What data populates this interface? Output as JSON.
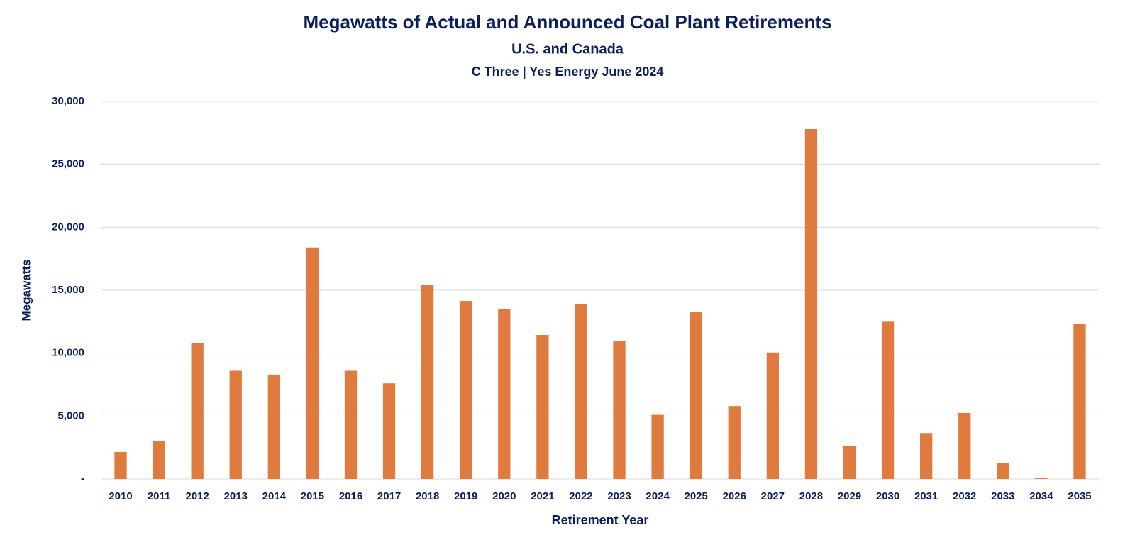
{
  "chart_data": {
    "type": "bar",
    "title": "Megawatts of Actual and Announced Coal Plant Retirements",
    "subtitle": "U.S. and Canada",
    "source": "C Three | Yes Energy June 2024",
    "x_label": "Retirement Year",
    "y_label": "Megawatts",
    "categories": [
      "2010",
      "2011",
      "2012",
      "2013",
      "2014",
      "2015",
      "2016",
      "2017",
      "2018",
      "2019",
      "2020",
      "2021",
      "2022",
      "2023",
      "2024",
      "2025",
      "2026",
      "2027",
      "2028",
      "2029",
      "2030",
      "2031",
      "2032",
      "2033",
      "2034",
      "2035"
    ],
    "values": [
      2150,
      3000,
      10800,
      8600,
      8300,
      18400,
      8600,
      7600,
      15450,
      14150,
      13500,
      11450,
      13900,
      10950,
      5100,
      13250,
      5800,
      10050,
      27800,
      2600,
      12500,
      3650,
      5250,
      1250,
      100,
      12350
    ],
    "color": "#e07b3f",
    "ylim": [
      0,
      30000
    ],
    "yticks": [
      {
        "value": 0,
        "label": "-"
      },
      {
        "value": 5000,
        "label": "5,000"
      },
      {
        "value": 10000,
        "label": "10,000"
      },
      {
        "value": 15000,
        "label": "15,000"
      },
      {
        "value": 20000,
        "label": "20,000"
      },
      {
        "value": 25000,
        "label": "25,000"
      },
      {
        "value": 30000,
        "label": "30,000"
      }
    ],
    "grid": true
  }
}
